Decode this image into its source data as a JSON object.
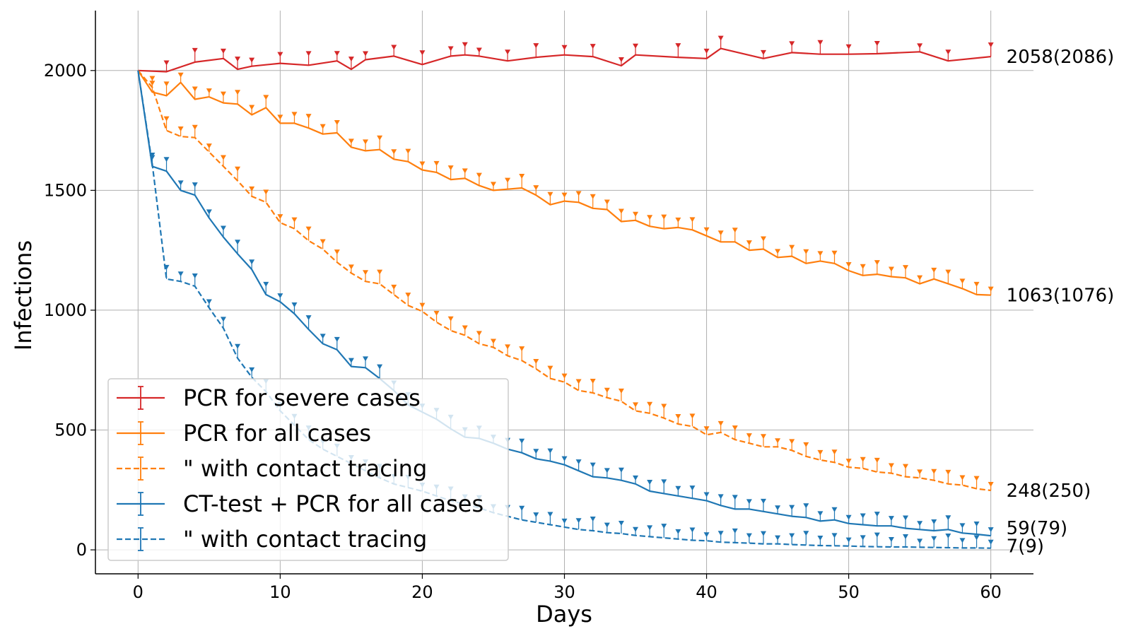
{
  "chart_data": {
    "type": "line",
    "title": "",
    "xlabel": "Days",
    "ylabel": "Infections",
    "xlim": [
      -3,
      63
    ],
    "ylim": [
      -100,
      2250
    ],
    "xticks": [
      0,
      10,
      20,
      30,
      40,
      50,
      60
    ],
    "yticks": [
      0,
      500,
      1000,
      1500,
      2000
    ],
    "grid": true,
    "legend_position": "bottom-left",
    "series": [
      {
        "name": "PCR for severe cases",
        "color": "#d62728",
        "dashed": false,
        "end_label": "2058(2086)",
        "x": [
          0,
          2,
          4,
          6,
          7,
          8,
          10,
          12,
          14,
          15,
          16,
          18,
          20,
          22,
          23,
          24,
          26,
          28,
          30,
          32,
          34,
          35,
          38,
          40,
          41,
          44,
          46,
          48,
          50,
          52,
          55,
          57,
          60
        ],
        "y": [
          2000,
          1995,
          2035,
          2050,
          2005,
          2018,
          2030,
          2022,
          2040,
          2005,
          2045,
          2060,
          2025,
          2060,
          2065,
          2060,
          2040,
          2055,
          2065,
          2058,
          2020,
          2065,
          2055,
          2050,
          2092,
          2050,
          2075,
          2068,
          2068,
          2070,
          2078,
          2040,
          2058
        ]
      },
      {
        "name": "PCR for all cases",
        "color": "#ff7f0e",
        "dashed": false,
        "end_label": "1063(1076)",
        "x": [
          0,
          1,
          2,
          3,
          4,
          5,
          6,
          7,
          8,
          9,
          10,
          11,
          12,
          13,
          14,
          15,
          16,
          17,
          18,
          19,
          20,
          21,
          22,
          23,
          24,
          25,
          26,
          27,
          28,
          29,
          30,
          31,
          32,
          33,
          34,
          35,
          36,
          37,
          38,
          39,
          40,
          41,
          42,
          43,
          44,
          45,
          46,
          47,
          48,
          49,
          50,
          51,
          52,
          53,
          54,
          55,
          56,
          57,
          58,
          59,
          60
        ],
        "y": [
          2000,
          1910,
          1895,
          1950,
          1880,
          1890,
          1865,
          1860,
          1815,
          1845,
          1780,
          1780,
          1760,
          1735,
          1740,
          1680,
          1665,
          1670,
          1630,
          1620,
          1585,
          1575,
          1545,
          1550,
          1520,
          1500,
          1505,
          1510,
          1480,
          1440,
          1455,
          1450,
          1425,
          1420,
          1370,
          1375,
          1350,
          1340,
          1345,
          1335,
          1310,
          1285,
          1285,
          1250,
          1255,
          1220,
          1225,
          1195,
          1205,
          1195,
          1165,
          1145,
          1150,
          1140,
          1135,
          1110,
          1130,
          1110,
          1090,
          1065,
          1063
        ]
      },
      {
        "name": "\" with contact tracing",
        "color": "#ff7f0e",
        "dashed": true,
        "end_label": "248(250)",
        "x": [
          0,
          1,
          2,
          3,
          4,
          5,
          6,
          7,
          8,
          9,
          10,
          11,
          12,
          13,
          14,
          15,
          16,
          17,
          18,
          19,
          20,
          21,
          22,
          23,
          24,
          25,
          26,
          27,
          28,
          29,
          30,
          31,
          32,
          33,
          34,
          35,
          36,
          37,
          38,
          39,
          40,
          41,
          42,
          43,
          44,
          45,
          46,
          47,
          48,
          49,
          50,
          51,
          52,
          53,
          54,
          55,
          56,
          57,
          58,
          59,
          60
        ],
        "y": [
          2000,
          1930,
          1750,
          1725,
          1720,
          1660,
          1600,
          1540,
          1475,
          1450,
          1365,
          1340,
          1290,
          1255,
          1200,
          1155,
          1120,
          1110,
          1065,
          1020,
          995,
          950,
          915,
          895,
          860,
          845,
          810,
          790,
          755,
          715,
          700,
          665,
          655,
          635,
          620,
          580,
          570,
          550,
          525,
          515,
          480,
          490,
          460,
          445,
          430,
          430,
          415,
          390,
          375,
          365,
          345,
          340,
          325,
          320,
          305,
          300,
          290,
          275,
          270,
          255,
          248
        ]
      },
      {
        "name": "CT-test + PCR for all cases",
        "color": "#1f77b4",
        "dashed": false,
        "end_label": "59(79)",
        "x": [
          0,
          1,
          2,
          3,
          4,
          5,
          6,
          7,
          8,
          9,
          10,
          11,
          12,
          13,
          14,
          15,
          16,
          17,
          18,
          19,
          20,
          21,
          22,
          23,
          24,
          25,
          26,
          27,
          28,
          29,
          30,
          31,
          32,
          33,
          34,
          35,
          36,
          37,
          38,
          39,
          40,
          41,
          42,
          43,
          44,
          45,
          46,
          47,
          48,
          49,
          50,
          51,
          52,
          53,
          54,
          55,
          56,
          57,
          58,
          59,
          60
        ],
        "y": [
          2000,
          1600,
          1580,
          1500,
          1480,
          1385,
          1305,
          1235,
          1170,
          1065,
          1035,
          985,
          920,
          860,
          835,
          765,
          760,
          715,
          665,
          605,
          575,
          545,
          505,
          470,
          465,
          445,
          420,
          405,
          380,
          370,
          355,
          330,
          305,
          300,
          290,
          275,
          245,
          235,
          225,
          215,
          205,
          185,
          170,
          170,
          160,
          150,
          140,
          135,
          120,
          125,
          110,
          105,
          100,
          100,
          90,
          85,
          80,
          85,
          70,
          65,
          59
        ]
      },
      {
        "name": "\" with contact tracing",
        "color": "#1f77b4",
        "dashed": true,
        "end_label": "7(9)",
        "x": [
          0,
          1,
          2,
          3,
          4,
          5,
          6,
          7,
          8,
          9,
          10,
          11,
          12,
          13,
          14,
          15,
          16,
          17,
          18,
          19,
          20,
          21,
          22,
          23,
          24,
          25,
          26,
          27,
          28,
          29,
          30,
          31,
          32,
          33,
          34,
          35,
          36,
          37,
          38,
          39,
          40,
          41,
          42,
          43,
          44,
          45,
          46,
          47,
          48,
          49,
          50,
          51,
          52,
          53,
          54,
          55,
          56,
          57,
          58,
          59,
          60
        ],
        "y": [
          2000,
          1610,
          1130,
          1120,
          1100,
          1010,
          925,
          800,
          720,
          660,
          580,
          520,
          460,
          420,
          390,
          360,
          330,
          300,
          275,
          260,
          245,
          225,
          205,
          190,
          175,
          155,
          140,
          125,
          115,
          105,
          95,
          85,
          80,
          72,
          68,
          60,
          55,
          50,
          45,
          40,
          38,
          32,
          30,
          28,
          25,
          25,
          22,
          20,
          18,
          17,
          16,
          14,
          13,
          12,
          12,
          11,
          10,
          9,
          8,
          8,
          7
        ]
      }
    ]
  }
}
